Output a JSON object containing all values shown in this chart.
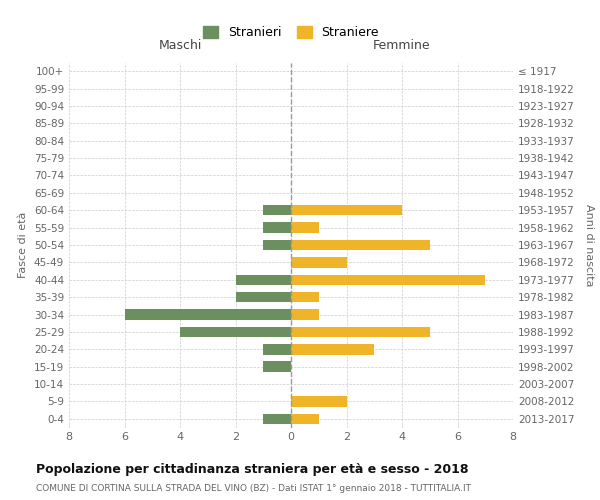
{
  "age_groups": [
    "100+",
    "95-99",
    "90-94",
    "85-89",
    "80-84",
    "75-79",
    "70-74",
    "65-69",
    "60-64",
    "55-59",
    "50-54",
    "45-49",
    "40-44",
    "35-39",
    "30-34",
    "25-29",
    "20-24",
    "15-19",
    "10-14",
    "5-9",
    "0-4"
  ],
  "birth_years": [
    "≤ 1917",
    "1918-1922",
    "1923-1927",
    "1928-1932",
    "1933-1937",
    "1938-1942",
    "1943-1947",
    "1948-1952",
    "1953-1957",
    "1958-1962",
    "1963-1967",
    "1968-1972",
    "1973-1977",
    "1978-1982",
    "1983-1987",
    "1988-1992",
    "1993-1997",
    "1998-2002",
    "2003-2007",
    "2008-2012",
    "2013-2017"
  ],
  "maschi": [
    0,
    0,
    0,
    0,
    0,
    0,
    0,
    0,
    -1,
    -1,
    -1,
    0,
    -2,
    -2,
    -6,
    -4,
    -1,
    -1,
    0,
    0,
    -1
  ],
  "femmine": [
    0,
    0,
    0,
    0,
    0,
    0,
    0,
    0,
    4,
    1,
    5,
    2,
    7,
    1,
    1,
    5,
    3,
    0,
    0,
    2,
    1
  ],
  "color_maschi": "#6b8f5e",
  "color_femmine": "#f0b429",
  "title": "Popolazione per cittadinanza straniera per età e sesso - 2018",
  "subtitle": "COMUNE DI CORTINA SULLA STRADA DEL VINO (BZ) - Dati ISTAT 1° gennaio 2018 - TUTTITALIA.IT",
  "xlabel_left": "Maschi",
  "xlabel_right": "Femmine",
  "ylabel_left": "Fasce di età",
  "ylabel_right": "Anni di nascita",
  "legend_maschi": "Stranieri",
  "legend_femmine": "Straniere",
  "xlim": [
    -8,
    8
  ],
  "xticks": [
    -8,
    -6,
    -4,
    -2,
    0,
    2,
    4,
    6,
    8
  ],
  "xticklabels": [
    "8",
    "6",
    "4",
    "2",
    "0",
    "2",
    "4",
    "6",
    "8"
  ],
  "background_color": "#ffffff",
  "grid_color": "#cccccc"
}
